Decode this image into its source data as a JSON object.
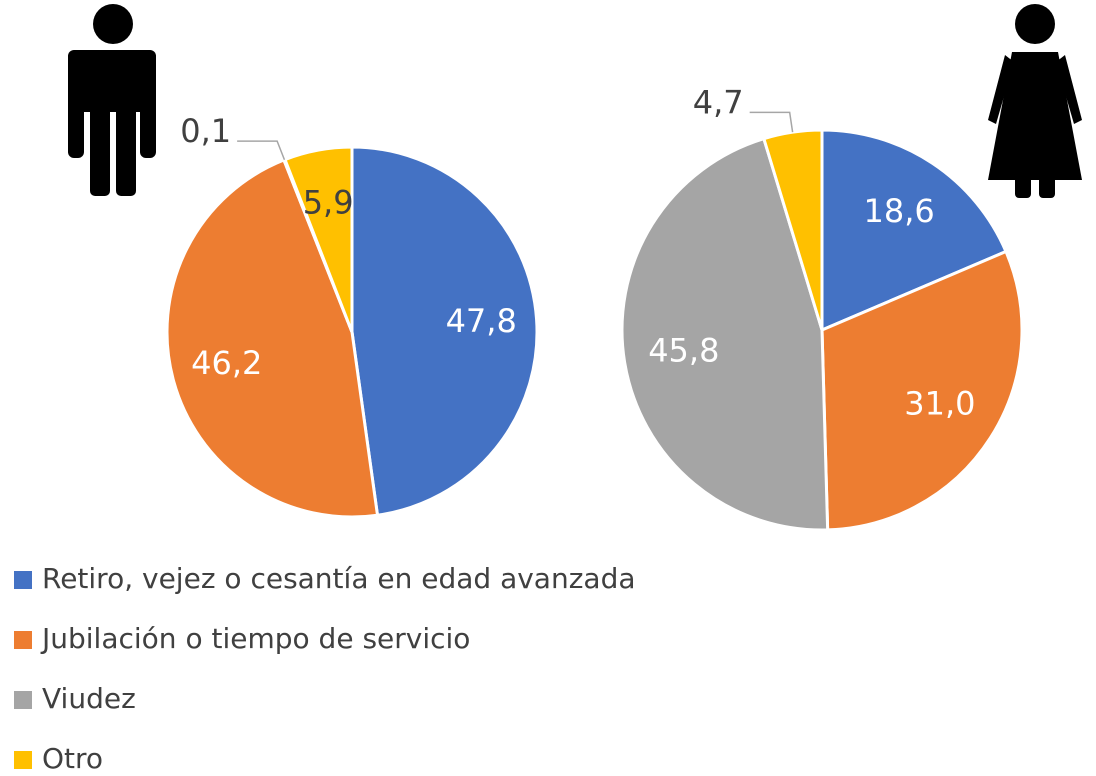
{
  "chart_data": {
    "type": "pie",
    "categories": [
      "Retiro, vejez o cesantía en edad avanzada",
      "Jubilación o tiempo de servicio",
      "Viudez",
      "Otro"
    ],
    "colors": [
      "#4472c4",
      "#ed7d31",
      "#a5a5a5",
      "#ffc000"
    ],
    "legend": "bottom-left",
    "series": [
      {
        "values": [
          47.8,
          46.2,
          0.1,
          5.9
        ],
        "value_labels": [
          "47,8",
          "46,2",
          "0,1",
          "5,9"
        ]
      },
      {
        "values": [
          18.6,
          31.0,
          45.8,
          4.7
        ],
        "value_labels": [
          "18,6",
          "31,0",
          "45,8",
          "4,7"
        ]
      }
    ]
  }
}
